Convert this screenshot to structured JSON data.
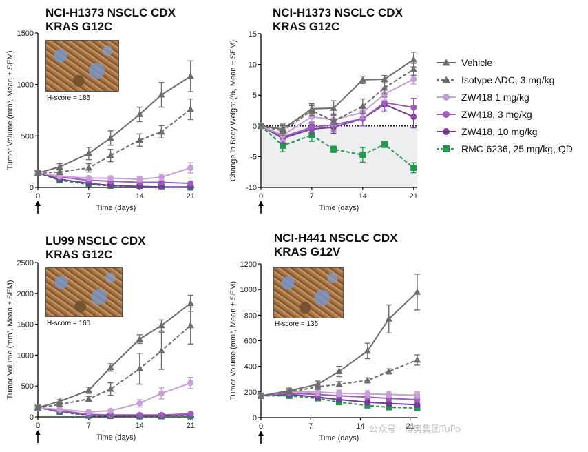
{
  "legend": {
    "items": [
      {
        "label": "Vehicle",
        "color": "#6d6d6d",
        "marker": "triangle",
        "dashed": false
      },
      {
        "label": "Isotype ADC, 3 mg/kg",
        "color": "#6d6d6d",
        "marker": "triangle",
        "dashed": true
      },
      {
        "label": "ZW418  1 mg/kg",
        "color": "#c79fd6",
        "marker": "circle",
        "dashed": false
      },
      {
        "label": "ZW418, 3 mg/kg",
        "color": "#9d5bbd",
        "marker": "circle",
        "dashed": false
      },
      {
        "label": "ZW418, 10 mg/kg",
        "color": "#7a3a9b",
        "marker": "circle",
        "dashed": false
      },
      {
        "label": "RMC-6236, 25 mg/kg, QD",
        "color": "#1e9a4c",
        "marker": "square",
        "dashed": true
      }
    ]
  },
  "watermark": "公众号 · 博奥集团TuPo",
  "chart_data": [
    {
      "type": "line",
      "title": "NCI-H1373 NSCLC CDX",
      "subtitle": "KRAS G12C",
      "xlabel": "Time (days)",
      "ylabel": "Tumor Volume (mm³, Mean ± SEM)",
      "xlim": [
        0,
        21.5
      ],
      "ylim": [
        0,
        1500
      ],
      "xticks": [
        0,
        7,
        14,
        21
      ],
      "yticks": [
        0,
        500,
        1000,
        1500
      ],
      "hscore": "H-score = 185",
      "arrow_at": 0,
      "series": [
        {
          "name": "Vehicle",
          "x": [
            0,
            3,
            7,
            10,
            14,
            17,
            21
          ],
          "y": [
            140,
            200,
            330,
            480,
            710,
            900,
            1080
          ],
          "err": [
            20,
            30,
            60,
            70,
            70,
            120,
            150
          ]
        },
        {
          "name": "Isotype ADC, 3 mg/kg",
          "x": [
            0,
            3,
            7,
            10,
            14,
            17,
            21
          ],
          "y": [
            140,
            150,
            190,
            310,
            460,
            540,
            760
          ],
          "err": [
            15,
            25,
            40,
            60,
            60,
            60,
            100
          ]
        },
        {
          "name": "ZW418  1 mg/kg",
          "x": [
            0,
            3,
            7,
            10,
            14,
            17,
            21
          ],
          "y": [
            140,
            110,
            90,
            90,
            80,
            100,
            190
          ],
          "err": [
            15,
            20,
            20,
            20,
            25,
            30,
            50
          ]
        },
        {
          "name": "ZW418, 3 mg/kg",
          "x": [
            0,
            3,
            7,
            10,
            14,
            17,
            21
          ],
          "y": [
            140,
            100,
            70,
            60,
            50,
            50,
            40
          ],
          "err": [
            15,
            15,
            15,
            10,
            10,
            10,
            10
          ]
        },
        {
          "name": "ZW418, 10 mg/kg",
          "x": [
            0,
            3,
            7,
            10,
            14,
            17,
            21
          ],
          "y": [
            140,
            80,
            40,
            20,
            10,
            5,
            5
          ],
          "err": [
            15,
            10,
            10,
            5,
            5,
            5,
            5
          ]
        },
        {
          "name": "RMC-6236, 25 mg/kg, QD",
          "x": [
            0,
            3,
            7,
            10,
            14,
            17,
            21
          ],
          "y": [
            140,
            70,
            30,
            15,
            10,
            5,
            0
          ],
          "err": [
            15,
            10,
            10,
            5,
            5,
            5,
            5
          ]
        }
      ]
    },
    {
      "type": "line",
      "title": "NCI-H1373 NSCLC CDX",
      "subtitle": "KRAS G12C",
      "xlabel": "Time (days)",
      "ylabel": "Change in Body Weight (%, Mean ± SEM)",
      "xlim": [
        0,
        21.5
      ],
      "ylim": [
        -10,
        15
      ],
      "xticks": [
        0,
        7,
        14,
        21
      ],
      "yticks": [
        -10,
        -5,
        0,
        5,
        10,
        15
      ],
      "arrow_at": 0,
      "zero_line": true,
      "series": [
        {
          "name": "Vehicle",
          "x": [
            0,
            3,
            7,
            10,
            14,
            17,
            21
          ],
          "y": [
            0,
            -0.5,
            2.8,
            2.9,
            7.5,
            7.6,
            10.8
          ],
          "err": [
            0.3,
            0.8,
            0.8,
            1.2,
            0.6,
            0.6,
            1.2
          ]
        },
        {
          "name": "Isotype ADC, 3 mg/kg",
          "x": [
            0,
            3,
            7,
            10,
            14,
            17,
            21
          ],
          "y": [
            0,
            -0.8,
            2.5,
            0.8,
            3.2,
            6.2,
            9.2
          ],
          "err": [
            0.3,
            0.8,
            0.8,
            1.0,
            1.2,
            1.0,
            1.0
          ]
        },
        {
          "name": "ZW418  1 mg/kg",
          "x": [
            0,
            3,
            7,
            10,
            14,
            17,
            21
          ],
          "y": [
            0,
            -1.5,
            1.5,
            1.0,
            2.2,
            5.2,
            7.6
          ],
          "err": [
            0.3,
            0.8,
            0.8,
            1.0,
            1.0,
            1.0,
            0.8
          ]
        },
        {
          "name": "ZW418, 3 mg/kg",
          "x": [
            0,
            3,
            7,
            10,
            14,
            17,
            21
          ],
          "y": [
            0,
            -1.8,
            -0.2,
            0.2,
            1.2,
            3.8,
            3.0
          ],
          "err": [
            0.3,
            0.8,
            0.8,
            1.0,
            1.2,
            1.2,
            1.5
          ]
        },
        {
          "name": "ZW418, 10 mg/kg",
          "x": [
            0,
            3,
            7,
            10,
            14,
            17,
            21
          ],
          "y": [
            0,
            -2.0,
            -0.5,
            -0.2,
            1.2,
            3.5,
            1.5
          ],
          "err": [
            0.3,
            0.8,
            0.8,
            1.0,
            1.2,
            1.2,
            1.8
          ]
        },
        {
          "name": "RMC-6236, 25 mg/kg, QD",
          "x": [
            0,
            3,
            7,
            10,
            14,
            17,
            21
          ],
          "y": [
            0,
            -3.2,
            -1.5,
            -3.8,
            -4.7,
            -3.0,
            -6.8
          ],
          "err": [
            0.3,
            1.0,
            1.0,
            0.5,
            1.2,
            0.5,
            0.8
          ]
        }
      ]
    },
    {
      "type": "line",
      "title": "LU99 NSCLC CDX",
      "subtitle": "KRAS G12C",
      "xlabel": "Time (days)",
      "ylabel": "Tumor Volume (mm³, Mean ± SEM)",
      "xlim": [
        0,
        21.5
      ],
      "ylim": [
        0,
        2500
      ],
      "xticks": [
        0,
        7,
        14,
        21
      ],
      "yticks": [
        0,
        500,
        1000,
        1500,
        2000,
        2500
      ],
      "hscore": "H-score = 160",
      "arrow_at": 0,
      "series": [
        {
          "name": "Vehicle",
          "x": [
            0,
            3,
            7,
            10,
            14,
            17,
            21
          ],
          "y": [
            150,
            250,
            430,
            800,
            1260,
            1480,
            1840
          ],
          "err": [
            30,
            30,
            50,
            60,
            70,
            90,
            130
          ]
        },
        {
          "name": "Isotype ADC, 3 mg/kg",
          "x": [
            0,
            3,
            7,
            10,
            14,
            17,
            21
          ],
          "y": [
            150,
            200,
            290,
            450,
            780,
            1070,
            1480
          ],
          "err": [
            30,
            30,
            40,
            100,
            250,
            300,
            300
          ]
        },
        {
          "name": "ZW418  1 mg/kg",
          "x": [
            0,
            3,
            7,
            10,
            14,
            17,
            21
          ],
          "y": [
            150,
            120,
            80,
            100,
            220,
            380,
            550
          ],
          "err": [
            30,
            20,
            20,
            20,
            60,
            90,
            90
          ]
        },
        {
          "name": "ZW418, 3 mg/kg",
          "x": [
            0,
            3,
            7,
            10,
            14,
            17,
            21
          ],
          "y": [
            150,
            100,
            40,
            30,
            30,
            30,
            50
          ],
          "err": [
            30,
            20,
            15,
            10,
            10,
            10,
            15
          ]
        },
        {
          "name": "ZW418, 10 mg/kg",
          "x": [
            0,
            3,
            7,
            10,
            14,
            17,
            21
          ],
          "y": [
            150,
            90,
            30,
            20,
            20,
            20,
            30
          ],
          "err": [
            30,
            20,
            10,
            10,
            10,
            10,
            10
          ]
        },
        {
          "name": "RMC-6236, 25 mg/kg, QD",
          "x": [
            0,
            3,
            7,
            10,
            14,
            17,
            21
          ],
          "y": [
            150,
            80,
            20,
            15,
            10,
            10,
            10
          ],
          "err": [
            30,
            20,
            10,
            5,
            5,
            5,
            5
          ]
        }
      ]
    },
    {
      "type": "line",
      "title": "NCI-H441 NSCLC CDX",
      "subtitle": "KRAS G12V",
      "xlabel": "Time (days)",
      "ylabel": "Tumor Volume (mm³, Mean ± SEM)",
      "xlim": [
        0,
        22
      ],
      "ylim": [
        0,
        1200
      ],
      "xticks": [
        0,
        7,
        14,
        21
      ],
      "yticks": [
        0,
        200,
        400,
        600,
        800,
        1000,
        1200
      ],
      "hscore": "H-score = 135",
      "arrow_at": 0,
      "series": [
        {
          "name": "Vehicle",
          "x": [
            0,
            4,
            8,
            11,
            15,
            18,
            22
          ],
          "y": [
            170,
            210,
            260,
            360,
            520,
            770,
            980
          ],
          "err": [
            15,
            20,
            25,
            40,
            60,
            110,
            140
          ]
        },
        {
          "name": "Isotype ADC, 3 mg/kg",
          "x": [
            0,
            4,
            8,
            11,
            15,
            18,
            22
          ],
          "y": [
            170,
            200,
            240,
            260,
            290,
            360,
            450
          ],
          "err": [
            15,
            15,
            20,
            20,
            20,
            20,
            40
          ]
        },
        {
          "name": "ZW418  1 mg/kg",
          "x": [
            0,
            4,
            8,
            11,
            15,
            18,
            22
          ],
          "y": [
            170,
            200,
            200,
            190,
            185,
            180,
            175
          ],
          "err": [
            15,
            15,
            25,
            25,
            25,
            25,
            25
          ]
        },
        {
          "name": "ZW418, 3 mg/kg",
          "x": [
            0,
            4,
            8,
            11,
            15,
            18,
            22
          ],
          "y": [
            170,
            190,
            180,
            170,
            160,
            150,
            140
          ],
          "err": [
            15,
            15,
            20,
            20,
            20,
            20,
            20
          ]
        },
        {
          "name": "ZW418, 10 mg/kg",
          "x": [
            0,
            4,
            8,
            11,
            15,
            18,
            22
          ],
          "y": [
            170,
            180,
            160,
            140,
            120,
            110,
            100
          ],
          "err": [
            15,
            15,
            20,
            20,
            20,
            20,
            20
          ]
        },
        {
          "name": "RMC-6236, 25 mg/kg, QD",
          "x": [
            0,
            4,
            8,
            11,
            15,
            18,
            22
          ],
          "y": [
            170,
            170,
            150,
            120,
            95,
            80,
            75
          ],
          "err": [
            15,
            15,
            15,
            15,
            15,
            10,
            10
          ]
        }
      ]
    }
  ]
}
